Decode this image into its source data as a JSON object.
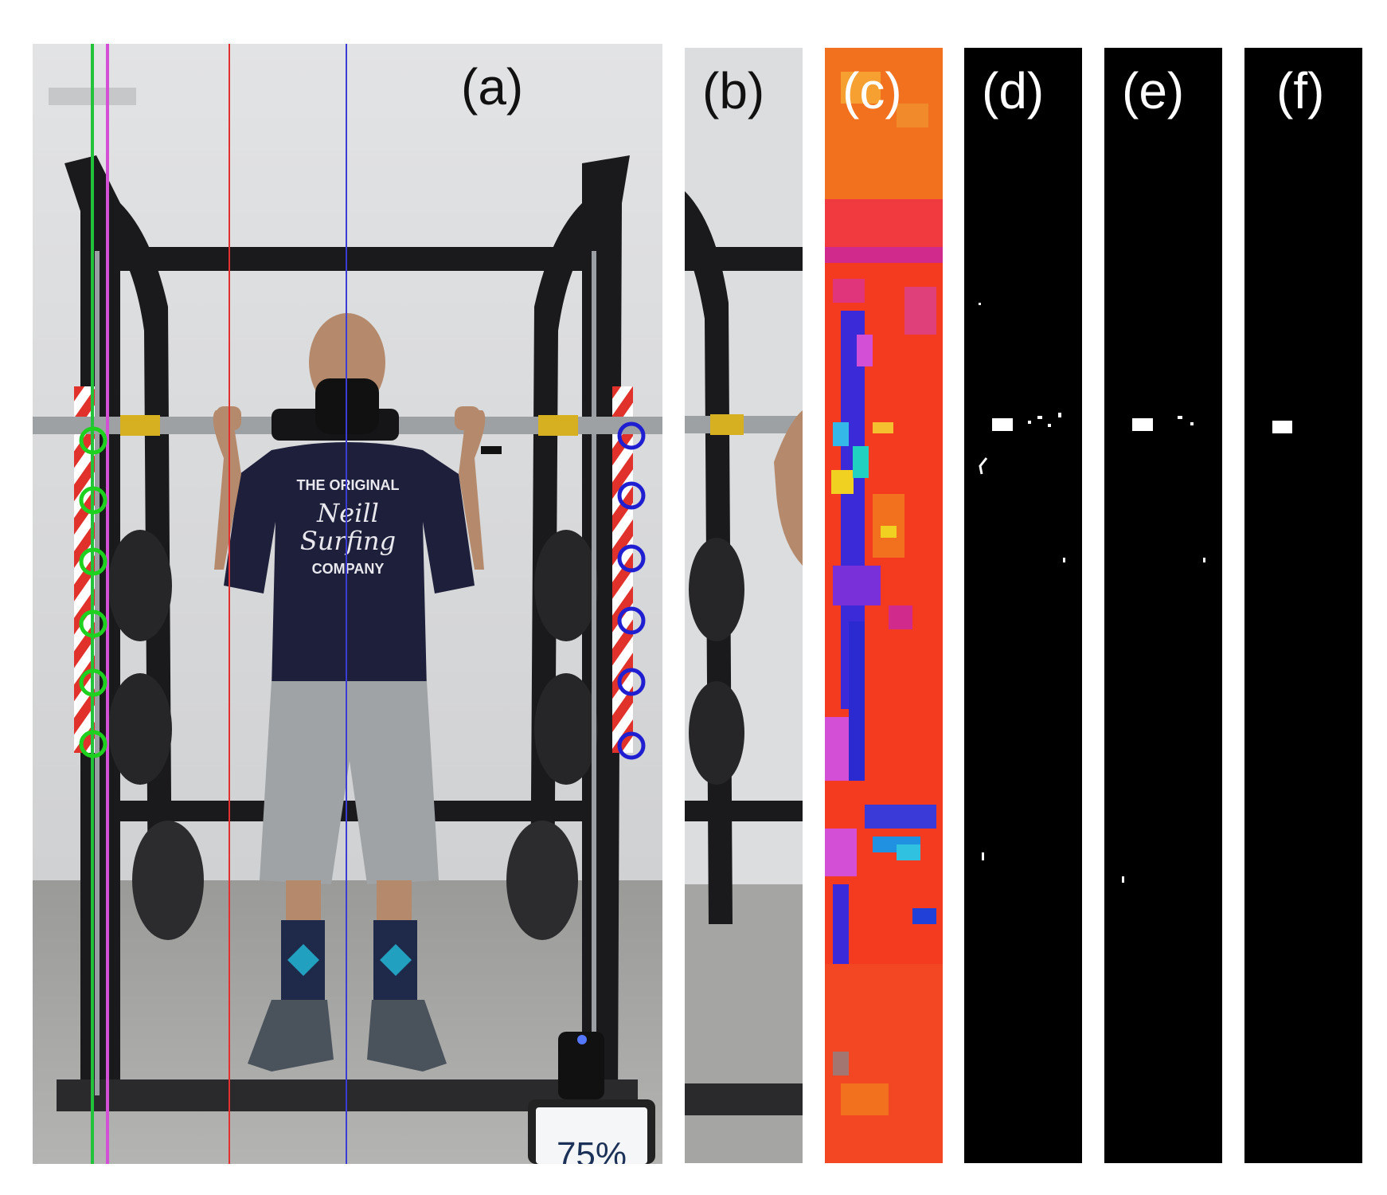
{
  "figure": {
    "panels": [
      {
        "label": "(a)",
        "content": "photo of man in squat rack holding barbell, with colored vertical tracking lines and detected markers",
        "label_color": "#111111"
      },
      {
        "label": "(b)",
        "content": "cropped photo strip",
        "label_color": "#111111"
      },
      {
        "label": "(c)",
        "content": "false-color heat map strip",
        "label_color": "#ffffff"
      },
      {
        "label": "(d)",
        "content": "binary mask strip with noise",
        "label_color": "#ffffff"
      },
      {
        "label": "(e)",
        "content": "binary mask strip, reduced noise",
        "label_color": "#ffffff"
      },
      {
        "label": "(f)",
        "content": "binary mask strip, single blob",
        "label_color": "#ffffff"
      }
    ],
    "tracking_lines": [
      {
        "name": "green",
        "color": "#22c33a"
      },
      {
        "name": "magenta",
        "color": "#d24fd6"
      },
      {
        "name": "red",
        "color": "#e03030"
      },
      {
        "name": "blue",
        "color": "#3b3bd6"
      }
    ],
    "markers": {
      "left": {
        "color": "#1fd11f",
        "count": 6
      },
      "right": {
        "color": "#1f1fd1",
        "count": 6
      }
    },
    "tablet_text": "75%",
    "shirt_text": {
      "line1": "THE ORIGINAL",
      "line2": "Neill",
      "line3": "Surfing",
      "line4": "COMPANY"
    },
    "colors": {
      "wall": "#dcdddf",
      "floor": "#a7a7a5",
      "rack": "#1a1a1c",
      "shirt": "#1e1f3a",
      "shorts": "#a0a3a5",
      "heatmap_base": "#f43a1f"
    }
  }
}
